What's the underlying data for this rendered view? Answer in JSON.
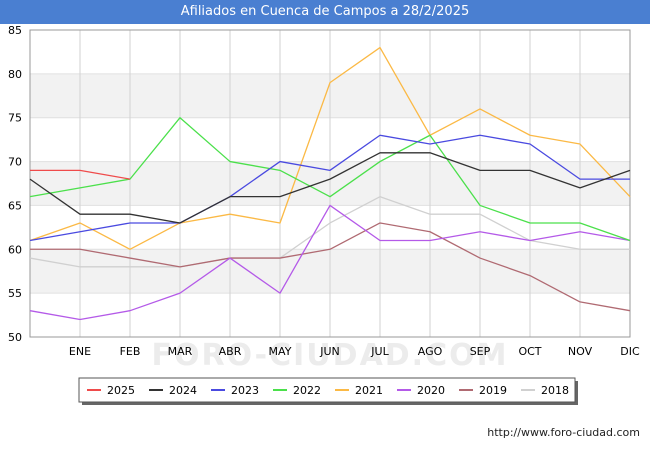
{
  "chart_data": {
    "type": "line",
    "title": "Afiliados en Cuenca de Campos a 28/2/2025",
    "categories": [
      "",
      "ENE",
      "FEB",
      "MAR",
      "ABR",
      "MAY",
      "JUN",
      "JUL",
      "AGO",
      "SEP",
      "OCT",
      "NOV",
      "DIC"
    ],
    "ylim": [
      50,
      85
    ],
    "yticks": [
      50,
      55,
      60,
      65,
      70,
      75,
      80,
      85
    ],
    "grid": true,
    "legend_position": "bottom",
    "series": [
      {
        "name": "2025",
        "color": "#ef4b4b",
        "values": [
          69,
          69,
          68,
          null,
          null,
          null,
          null,
          null,
          null,
          null,
          null,
          null,
          null
        ]
      },
      {
        "name": "2024",
        "color": "#333333",
        "values": [
          68,
          64,
          64,
          63,
          66,
          66,
          68,
          71,
          71,
          69,
          69,
          67,
          69
        ]
      },
      {
        "name": "2023",
        "color": "#4a4ae0",
        "values": [
          61,
          62,
          63,
          63,
          66,
          70,
          69,
          73,
          72,
          73,
          72,
          68,
          68
        ]
      },
      {
        "name": "2022",
        "color": "#4be04b",
        "values": [
          66,
          67,
          68,
          75,
          70,
          69,
          66,
          70,
          73,
          65,
          63,
          63,
          61
        ]
      },
      {
        "name": "2021",
        "color": "#fbb945",
        "values": [
          61,
          63,
          60,
          63,
          64,
          63,
          79,
          83,
          73,
          76,
          73,
          72,
          66
        ]
      },
      {
        "name": "2020",
        "color": "#b45ae8",
        "values": [
          53,
          52,
          53,
          55,
          59,
          55,
          65,
          61,
          61,
          62,
          61,
          62,
          61
        ]
      },
      {
        "name": "2019",
        "color": "#b06a72",
        "values": [
          60,
          60,
          59,
          58,
          59,
          59,
          60,
          63,
          62,
          59,
          57,
          54,
          53
        ]
      },
      {
        "name": "2018",
        "color": "#d0d0d0",
        "values": [
          59,
          58,
          58,
          58,
          59,
          59,
          63,
          66,
          64,
          64,
          61,
          60,
          60
        ]
      }
    ],
    "watermark": "FORO-CIUDAD.COM",
    "source_url": "http://www.foro-ciudad.com"
  }
}
